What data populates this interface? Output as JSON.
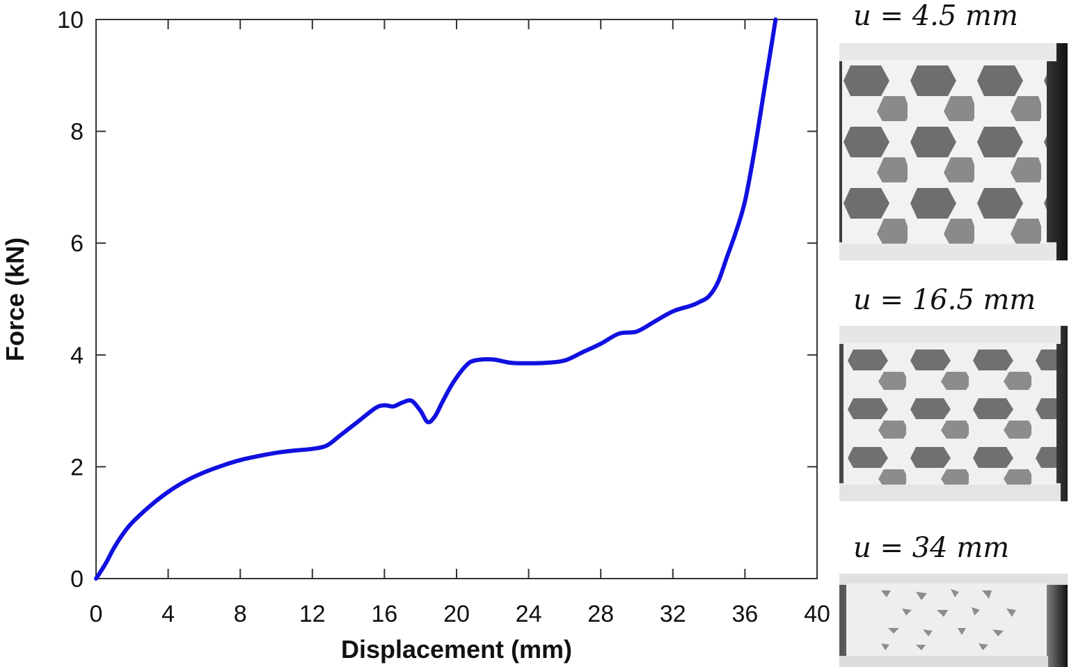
{
  "chart_data": {
    "type": "line",
    "xlabel": "Displacement (mm)",
    "ylabel": "Force (kN)",
    "xlim": [
      0,
      40
    ],
    "ylim": [
      0,
      10
    ],
    "xticks": [
      0,
      4,
      8,
      12,
      16,
      20,
      24,
      28,
      32,
      36,
      40
    ],
    "yticks": [
      0,
      2,
      4,
      6,
      8,
      10
    ],
    "grid": false,
    "legend": "none",
    "line_color": "#1010e0",
    "series": [
      {
        "x": [
          0,
          0.5,
          1,
          1.5,
          2,
          3,
          4,
          5,
          6,
          7,
          8,
          9,
          10,
          11,
          12,
          12.8,
          13.5,
          14.5,
          15.5,
          16,
          16.5,
          17,
          17.5,
          18,
          18.4,
          18.8,
          19.2,
          19.8,
          20.5,
          21,
          22,
          23,
          24,
          25,
          26,
          27,
          28,
          29,
          30,
          31,
          32,
          33,
          33.5,
          34,
          34.5,
          35,
          35.5,
          36,
          36.5,
          37,
          37.5,
          37.7
        ],
        "y": [
          0,
          0.25,
          0.55,
          0.8,
          1.0,
          1.3,
          1.55,
          1.75,
          1.9,
          2.02,
          2.12,
          2.19,
          2.25,
          2.29,
          2.32,
          2.38,
          2.55,
          2.8,
          3.05,
          3.1,
          3.08,
          3.15,
          3.18,
          3.0,
          2.8,
          2.9,
          3.15,
          3.5,
          3.8,
          3.9,
          3.92,
          3.86,
          3.85,
          3.86,
          3.9,
          4.05,
          4.2,
          4.38,
          4.42,
          4.6,
          4.78,
          4.88,
          4.95,
          5.05,
          5.3,
          5.75,
          6.2,
          6.75,
          7.6,
          8.6,
          9.6,
          10.0
        ]
      }
    ]
  },
  "panels": [
    {
      "label": "u = 4.5 mm"
    },
    {
      "label": "u = 16.5 mm"
    },
    {
      "label": "u = 34 mm"
    }
  ]
}
